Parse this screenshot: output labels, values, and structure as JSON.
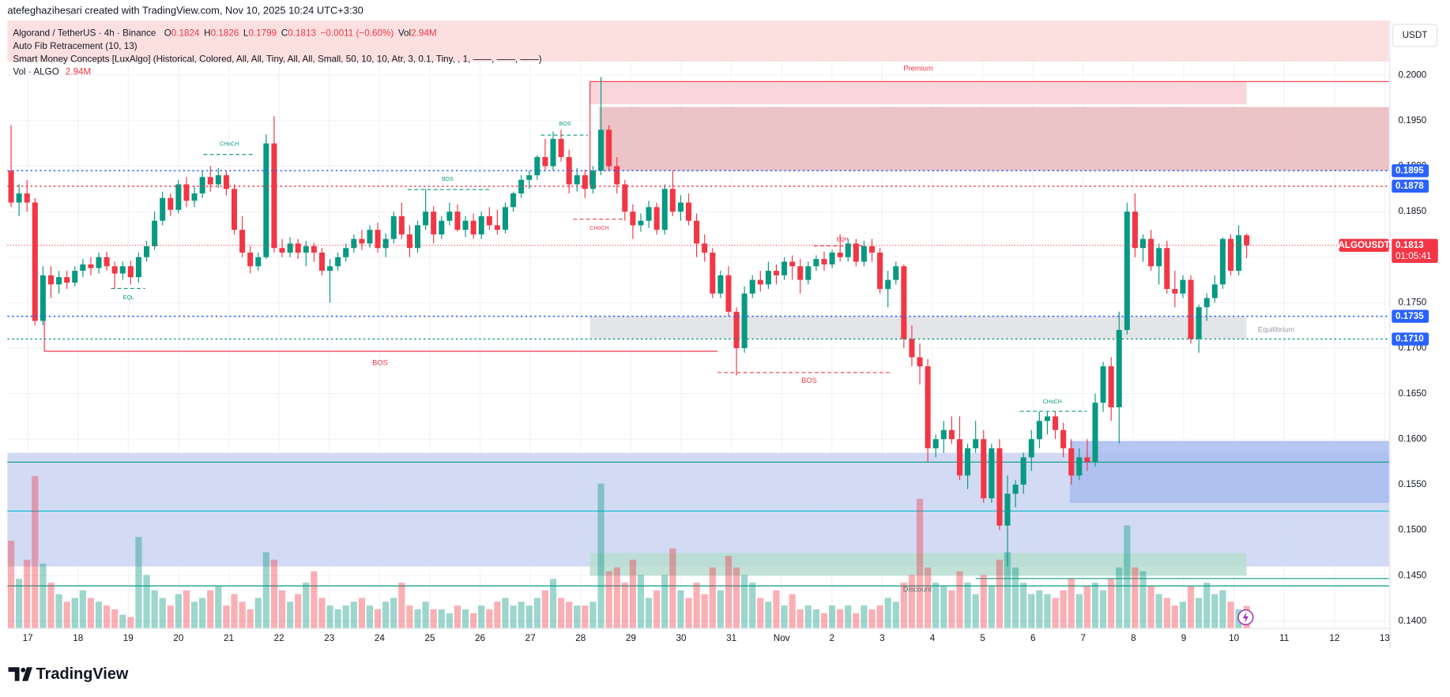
{
  "header": "atefeghazihesari created with TradingView.com, Nov 10, 2025 10:24 UTC+3:30",
  "footer": "TradingView",
  "chart_data": {
    "type": "candlestick",
    "title": "Algorand / TetherUS · 4h · Binance",
    "ohlc": [
      {
        "key": "O",
        "value": "0.1824"
      },
      {
        "key": "H",
        "value": "0.1826"
      },
      {
        "key": "L",
        "value": "0.1799"
      },
      {
        "key": "C",
        "value": "0.1813"
      }
    ],
    "change": "−0.0011 (−0.60%)",
    "volume_key": "Vol",
    "volume_text": "2.94M",
    "indicators": [
      "Auto Fib Retracement (10, 13)",
      "Smart Money Concepts [LuxAlgo] (Historical, Colored, All, All, Tiny, All, All, Small, 50, 10, 10, Atr, 3, 0.1, Tiny, , 1, ——, ——, ——)"
    ],
    "volume_legend": {
      "name": "Vol · ALGO",
      "value": "2.94M"
    },
    "currency": "USDT",
    "up_color": "#089981",
    "down_color": "#f23645",
    "ylim": [
      0.1392,
      0.206
    ],
    "yticks": [
      {
        "value": 0.14,
        "label": "0.1400"
      },
      {
        "value": 0.145,
        "label": "0.1450"
      },
      {
        "value": 0.15,
        "label": "0.1500"
      },
      {
        "value": 0.155,
        "label": "0.1550"
      },
      {
        "value": 0.16,
        "label": "0.1600"
      },
      {
        "value": 0.165,
        "label": "0.1650"
      },
      {
        "value": 0.17,
        "label": "0.1700"
      },
      {
        "value": 0.175,
        "label": "0.1750"
      },
      {
        "value": 0.18,
        "label": "0.1800"
      },
      {
        "value": 0.185,
        "label": "0.1850"
      },
      {
        "value": 0.19,
        "label": "0.1900"
      },
      {
        "value": 0.195,
        "label": "0.1950"
      },
      {
        "value": 0.2,
        "label": "0.2000"
      }
    ],
    "x_labels": [
      "17",
      "18",
      "19",
      "20",
      "21",
      "22",
      "23",
      "24",
      "25",
      "26",
      "27",
      "28",
      "29",
      "30",
      "31",
      "Nov",
      "2",
      "3",
      "4",
      "5",
      "6",
      "7",
      "8",
      "9",
      "10",
      "11",
      "12",
      "13"
    ],
    "candles": [
      [
        0.1895,
        0.1945,
        0.1855,
        0.186
      ],
      [
        0.186,
        0.188,
        0.1845,
        0.187
      ],
      [
        0.187,
        0.1885,
        0.185,
        0.186
      ],
      [
        0.186,
        0.1865,
        0.1725,
        0.173
      ],
      [
        0.173,
        0.179,
        0.1725,
        0.178
      ],
      [
        0.178,
        0.179,
        0.1755,
        0.177
      ],
      [
        0.177,
        0.1785,
        0.176,
        0.1778
      ],
      [
        0.1778,
        0.1785,
        0.1765,
        0.1772
      ],
      [
        0.1772,
        0.179,
        0.1768,
        0.1785
      ],
      [
        0.1785,
        0.1798,
        0.1778,
        0.1792
      ],
      [
        0.1792,
        0.18,
        0.178,
        0.1788
      ],
      [
        0.1788,
        0.1805,
        0.1782,
        0.18
      ],
      [
        0.18,
        0.1806,
        0.1785,
        0.179
      ],
      [
        0.179,
        0.1795,
        0.1765,
        0.1782
      ],
      [
        0.1782,
        0.1795,
        0.1775,
        0.179
      ],
      [
        0.179,
        0.1796,
        0.177,
        0.1778
      ],
      [
        0.1778,
        0.1805,
        0.1772,
        0.18
      ],
      [
        0.18,
        0.1818,
        0.1795,
        0.1812
      ],
      [
        0.1812,
        0.185,
        0.1808,
        0.184
      ],
      [
        0.184,
        0.1872,
        0.1835,
        0.1865
      ],
      [
        0.1865,
        0.187,
        0.1845,
        0.1852
      ],
      [
        0.1852,
        0.1885,
        0.1848,
        0.188
      ],
      [
        0.188,
        0.1888,
        0.1855,
        0.1862
      ],
      [
        0.1862,
        0.1878,
        0.1855,
        0.187
      ],
      [
        0.187,
        0.1895,
        0.1865,
        0.1888
      ],
      [
        0.1888,
        0.19,
        0.1872,
        0.188
      ],
      [
        0.188,
        0.1898,
        0.1876,
        0.189
      ],
      [
        0.189,
        0.1895,
        0.1868,
        0.1875
      ],
      [
        0.1875,
        0.188,
        0.1825,
        0.183
      ],
      [
        0.183,
        0.1845,
        0.18,
        0.1805
      ],
      [
        0.1805,
        0.1812,
        0.1782,
        0.179
      ],
      [
        0.179,
        0.1805,
        0.1785,
        0.18
      ],
      [
        0.18,
        0.1935,
        0.1798,
        0.1925
      ],
      [
        0.1925,
        0.1955,
        0.1805,
        0.181
      ],
      [
        0.181,
        0.182,
        0.18,
        0.1805
      ],
      [
        0.1805,
        0.1822,
        0.18,
        0.1815
      ],
      [
        0.1815,
        0.182,
        0.1798,
        0.1805
      ],
      [
        0.1805,
        0.1818,
        0.179,
        0.1812
      ],
      [
        0.1812,
        0.1816,
        0.1795,
        0.1805
      ],
      [
        0.1805,
        0.181,
        0.178,
        0.1785
      ],
      [
        0.1785,
        0.1798,
        0.175,
        0.179
      ],
      [
        0.179,
        0.1805,
        0.1785,
        0.18
      ],
      [
        0.18,
        0.1815,
        0.1795,
        0.181
      ],
      [
        0.181,
        0.1825,
        0.1805,
        0.182
      ],
      [
        0.182,
        0.183,
        0.1808,
        0.1815
      ],
      [
        0.1815,
        0.1835,
        0.181,
        0.183
      ],
      [
        0.183,
        0.1838,
        0.1805,
        0.181
      ],
      [
        0.181,
        0.1826,
        0.18,
        0.182
      ],
      [
        0.182,
        0.185,
        0.1815,
        0.1845
      ],
      [
        0.1845,
        0.186,
        0.182,
        0.1825
      ],
      [
        0.1825,
        0.1835,
        0.18,
        0.181
      ],
      [
        0.181,
        0.184,
        0.1805,
        0.1835
      ],
      [
        0.1835,
        0.1875,
        0.183,
        0.185
      ],
      [
        0.185,
        0.1856,
        0.1815,
        0.1825
      ],
      [
        0.1825,
        0.1845,
        0.182,
        0.184
      ],
      [
        0.184,
        0.186,
        0.1835,
        0.185
      ],
      [
        0.185,
        0.1858,
        0.1828,
        0.183
      ],
      [
        0.183,
        0.1845,
        0.1822,
        0.184
      ],
      [
        0.184,
        0.1848,
        0.182,
        0.1825
      ],
      [
        0.1825,
        0.185,
        0.182,
        0.1845
      ],
      [
        0.1845,
        0.1855,
        0.183,
        0.1835
      ],
      [
        0.1835,
        0.1852,
        0.1825,
        0.183
      ],
      [
        0.183,
        0.186,
        0.1826,
        0.1855
      ],
      [
        0.1855,
        0.1872,
        0.185,
        0.187
      ],
      [
        0.187,
        0.189,
        0.1865,
        0.1885
      ],
      [
        0.1885,
        0.1895,
        0.1875,
        0.189
      ],
      [
        0.189,
        0.1912,
        0.1885,
        0.191
      ],
      [
        0.191,
        0.193,
        0.1895,
        0.19
      ],
      [
        0.19,
        0.1938,
        0.1895,
        0.193
      ],
      [
        0.193,
        0.194,
        0.1905,
        0.191
      ],
      [
        0.191,
        0.1918,
        0.187,
        0.188
      ],
      [
        0.188,
        0.1898,
        0.1872,
        0.189
      ],
      [
        0.189,
        0.1896,
        0.1865,
        0.1875
      ],
      [
        0.1875,
        0.19,
        0.187,
        0.1895
      ],
      [
        0.1895,
        0.1998,
        0.189,
        0.194
      ],
      [
        0.194,
        0.1945,
        0.1895,
        0.19
      ],
      [
        0.19,
        0.191,
        0.187,
        0.188
      ],
      [
        0.188,
        0.1885,
        0.184,
        0.185
      ],
      [
        0.185,
        0.1858,
        0.182,
        0.1835
      ],
      [
        0.1835,
        0.1848,
        0.1828,
        0.184
      ],
      [
        0.184,
        0.1862,
        0.1832,
        0.1855
      ],
      [
        0.1855,
        0.186,
        0.1825,
        0.183
      ],
      [
        0.183,
        0.188,
        0.1825,
        0.1875
      ],
      [
        0.1875,
        0.1895,
        0.1845,
        0.185
      ],
      [
        0.185,
        0.1868,
        0.184,
        0.186
      ],
      [
        0.186,
        0.187,
        0.1835,
        0.184
      ],
      [
        0.184,
        0.1848,
        0.18,
        0.1815
      ],
      [
        0.1815,
        0.1825,
        0.1795,
        0.1805
      ],
      [
        0.1805,
        0.181,
        0.1755,
        0.176
      ],
      [
        0.176,
        0.1785,
        0.1755,
        0.178
      ],
      [
        0.178,
        0.179,
        0.1735,
        0.174
      ],
      [
        0.174,
        0.1745,
        0.167,
        0.17
      ],
      [
        0.17,
        0.1768,
        0.1695,
        0.176
      ],
      [
        0.176,
        0.178,
        0.1755,
        0.1775
      ],
      [
        0.1775,
        0.1785,
        0.1762,
        0.177
      ],
      [
        0.177,
        0.1795,
        0.1765,
        0.1785
      ],
      [
        0.1785,
        0.1792,
        0.177,
        0.178
      ],
      [
        0.178,
        0.18,
        0.1775,
        0.1795
      ],
      [
        0.1795,
        0.1802,
        0.1775,
        0.179
      ],
      [
        0.179,
        0.1798,
        0.176,
        0.1775
      ],
      [
        0.1775,
        0.1795,
        0.177,
        0.179
      ],
      [
        0.179,
        0.1802,
        0.1785,
        0.1798
      ],
      [
        0.1798,
        0.1806,
        0.1785,
        0.1792
      ],
      [
        0.1792,
        0.1808,
        0.1788,
        0.1805
      ],
      [
        0.1805,
        0.1825,
        0.1795,
        0.18
      ],
      [
        0.18,
        0.182,
        0.1795,
        0.1815
      ],
      [
        0.1815,
        0.182,
        0.179,
        0.1795
      ],
      [
        0.1795,
        0.1818,
        0.179,
        0.1812
      ],
      [
        0.1812,
        0.182,
        0.1795,
        0.1805
      ],
      [
        0.1805,
        0.181,
        0.176,
        0.1765
      ],
      [
        0.1765,
        0.1785,
        0.1745,
        0.1775
      ],
      [
        0.1775,
        0.1795,
        0.177,
        0.179
      ],
      [
        0.179,
        0.1792,
        0.17,
        0.171
      ],
      [
        0.171,
        0.1725,
        0.168,
        0.169
      ],
      [
        0.169,
        0.1705,
        0.166,
        0.168
      ],
      [
        0.168,
        0.1688,
        0.1575,
        0.159
      ],
      [
        0.159,
        0.1605,
        0.158,
        0.16
      ],
      [
        0.16,
        0.162,
        0.1585,
        0.161
      ],
      [
        0.161,
        0.1625,
        0.1595,
        0.16
      ],
      [
        0.16,
        0.1625,
        0.1555,
        0.156
      ],
      [
        0.156,
        0.1595,
        0.1545,
        0.159
      ],
      [
        0.159,
        0.162,
        0.1585,
        0.16
      ],
      [
        0.16,
        0.161,
        0.153,
        0.1535
      ],
      [
        0.1535,
        0.1595,
        0.153,
        0.159
      ],
      [
        0.159,
        0.16,
        0.15,
        0.1505
      ],
      [
        0.1505,
        0.156,
        0.146,
        0.154
      ],
      [
        0.154,
        0.1555,
        0.1525,
        0.155
      ],
      [
        0.155,
        0.1585,
        0.154,
        0.158
      ],
      [
        0.158,
        0.161,
        0.1565,
        0.16
      ],
      [
        0.16,
        0.163,
        0.159,
        0.162
      ],
      [
        0.162,
        0.163,
        0.1605,
        0.1625
      ],
      [
        0.1625,
        0.163,
        0.16,
        0.161
      ],
      [
        0.161,
        0.1618,
        0.158,
        0.159
      ],
      [
        0.159,
        0.16,
        0.155,
        0.156
      ],
      [
        0.156,
        0.159,
        0.1555,
        0.158
      ],
      [
        0.158,
        0.16,
        0.1565,
        0.1575
      ],
      [
        0.1575,
        0.165,
        0.157,
        0.164
      ],
      [
        0.164,
        0.1685,
        0.163,
        0.168
      ],
      [
        0.168,
        0.169,
        0.162,
        0.1635
      ],
      [
        0.1635,
        0.174,
        0.1595,
        0.172
      ],
      [
        0.172,
        0.186,
        0.1715,
        0.185
      ],
      [
        0.185,
        0.187,
        0.18,
        0.181
      ],
      [
        0.181,
        0.1825,
        0.1795,
        0.182
      ],
      [
        0.182,
        0.183,
        0.1785,
        0.179
      ],
      [
        0.179,
        0.1815,
        0.177,
        0.181
      ],
      [
        0.181,
        0.1818,
        0.176,
        0.1765
      ],
      [
        0.1765,
        0.1785,
        0.1745,
        0.176
      ],
      [
        0.176,
        0.178,
        0.1755,
        0.1775
      ],
      [
        0.1775,
        0.178,
        0.1705,
        0.171
      ],
      [
        0.171,
        0.1748,
        0.1695,
        0.1745
      ],
      [
        0.1745,
        0.176,
        0.173,
        0.1755
      ],
      [
        0.1755,
        0.178,
        0.175,
        0.177
      ],
      [
        0.177,
        0.1822,
        0.1765,
        0.182
      ],
      [
        0.182,
        0.1825,
        0.178,
        0.1785
      ],
      [
        0.1785,
        0.1835,
        0.178,
        0.1824
      ],
      [
        0.1824,
        0.1826,
        0.1799,
        0.1813
      ]
    ],
    "volume": [
      11.5,
      6.5,
      9,
      20,
      8.5,
      6,
      4.5,
      3.5,
      4,
      5,
      4,
      3.5,
      3,
      2.5,
      1.8,
      1.5,
      12,
      7,
      5,
      4,
      3,
      4.5,
      5,
      3.5,
      4,
      5,
      5.5,
      3,
      4.5,
      3.5,
      2.5,
      4,
      10,
      9,
      5,
      3.5,
      4.5,
      6,
      7.5,
      4,
      3,
      2.5,
      3,
      3.5,
      4,
      3,
      2.5,
      3.5,
      4,
      6,
      3,
      2.5,
      3.5,
      2.5,
      2.5,
      2,
      3,
      2.5,
      2,
      3,
      2.5,
      3.5,
      4,
      3,
      3.5,
      3,
      4,
      5,
      6.5,
      4,
      3.5,
      3,
      3,
      3.5,
      19,
      7.5,
      8,
      6,
      9,
      7,
      4,
      5,
      7,
      10.5,
      5,
      4,
      6,
      4.5,
      8,
      5,
      9.5,
      8,
      7,
      6,
      4,
      3.5,
      5,
      3,
      4.5,
      2.5,
      3,
      2.5,
      2,
      3,
      2.5,
      3,
      2,
      3,
      2.5,
      3,
      4,
      3.5,
      6,
      7,
      17,
      8,
      6,
      5.5,
      5,
      7.5,
      6,
      4.5,
      7,
      5.5,
      9,
      10,
      8,
      6,
      4.5,
      5,
      4.5,
      4,
      5,
      6.5,
      4.5,
      5.5,
      6,
      5,
      6.5,
      8,
      13.5,
      8,
      7.5,
      5.5,
      4.5,
      4,
      3,
      3.5,
      5.5,
      4,
      6,
      4.5,
      5,
      3.5,
      2.5,
      2.94
    ],
    "zones": [
      {
        "range": [
          0.2015,
          0.206
        ],
        "color": "#fcdada",
        "label": "Premium"
      },
      {
        "range": [
          0.1968,
          0.1993
        ],
        "color": "#f8cfd3"
      },
      {
        "range": [
          0.1895,
          0.1965
        ],
        "color": "#e9b9bd"
      },
      {
        "range": [
          0.171,
          0.1735
        ],
        "color": "#dfe1e4",
        "label": "Equilibrium"
      },
      {
        "range": [
          0.146,
          0.1585
        ],
        "color": "#cdd6f3"
      },
      {
        "range": [
          0.153,
          0.1598
        ],
        "color": "#a9bcf0"
      },
      {
        "range": [
          0.145,
          0.1475
        ],
        "color": "#b7ddd0",
        "label": "Discount"
      }
    ],
    "levels": [
      {
        "value": 0.1895,
        "label": "0.1895",
        "color": "#2962ff"
      },
      {
        "value": 0.1878,
        "label": "0.1878",
        "color": "#f23645"
      },
      {
        "value": 0.1735,
        "label": "0.1735",
        "color": "#2962ff"
      },
      {
        "value": 0.171,
        "label": "0.1710",
        "color": "#089981"
      }
    ],
    "last_price": {
      "value": 0.1813,
      "label": "0.1813",
      "symbol": "ALGOUSDT",
      "countdown": "01:05:41"
    },
    "annotations": [
      "BOS",
      "BOS",
      "BOS",
      "BOS",
      "CHoCH",
      "CHoCH",
      "CHoCH",
      "EQL",
      "EQH"
    ]
  }
}
